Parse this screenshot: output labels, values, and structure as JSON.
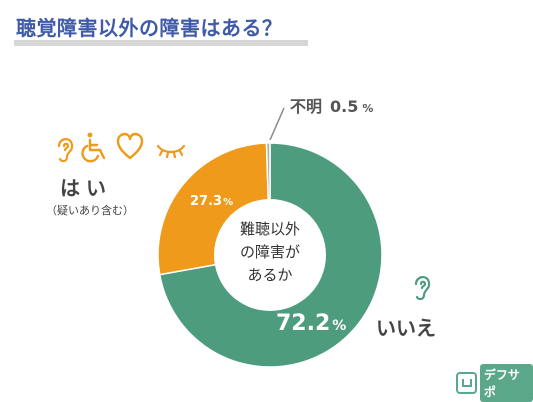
{
  "title": "聴覚障害以外の障害はある？",
  "chart_data": {
    "type": "pie",
    "donut": true,
    "center_label": [
      "難聴以外",
      "の障害が",
      "あるか"
    ],
    "slices": [
      {
        "label": "いいえ",
        "value": 72.2,
        "value_text": "72.2",
        "unit": "%",
        "color": "#4e9c7e"
      },
      {
        "label": "はい",
        "sublabel": "（疑いあり含む）",
        "value": 27.3,
        "value_text": "27.3",
        "unit": "%",
        "color": "#ef9a1a"
      },
      {
        "label": "不明",
        "value": 0.5,
        "value_text": "0.5",
        "unit": "%",
        "color": "#b0b0b0"
      }
    ]
  },
  "icons": {
    "hai": [
      "ear-icon",
      "wheelchair-icon",
      "heart-icon",
      "closed-eye-icon"
    ],
    "iie": [
      "ear-icon"
    ],
    "icon_color": "#ef9a1a",
    "iie_icon_color": "#4e9c7e"
  },
  "brand": {
    "text": "デフサポ"
  }
}
